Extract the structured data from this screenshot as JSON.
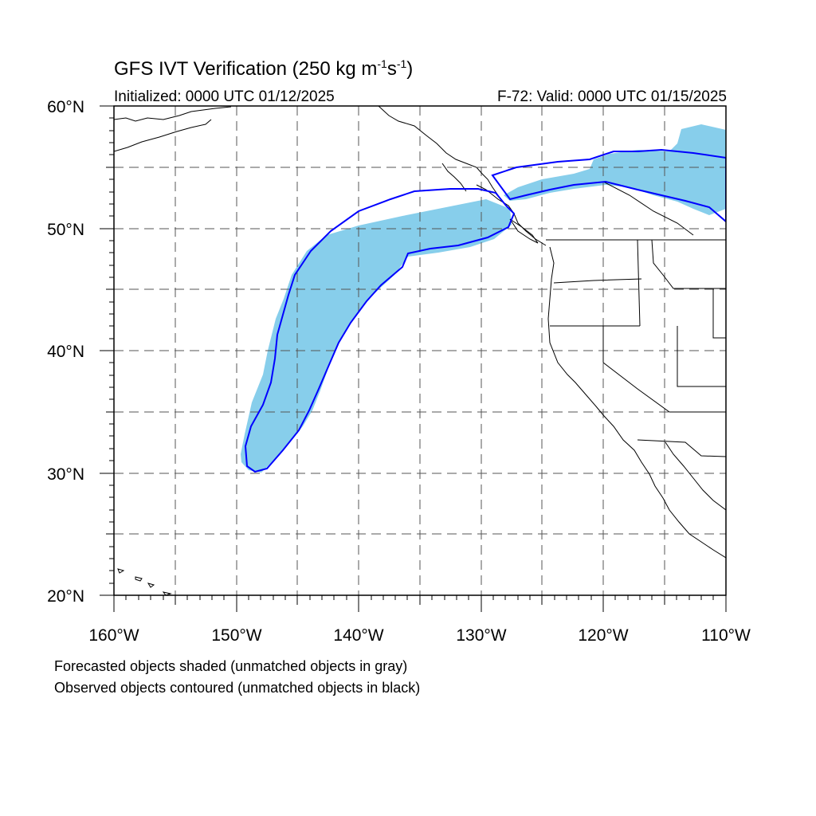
{
  "title": {
    "prefix": "GFS IVT Verification (250 kg m",
    "exp1": "-1",
    "middle": "s",
    "exp2": "-1",
    "suffix": ")"
  },
  "init_text": "Initialized: 0000 UTC 01/12/2025",
  "valid_text": "F-72: Valid: 0000 UTC 01/15/2025",
  "lat_labels": [
    "60°N",
    "50°N",
    "40°N",
    "30°N",
    "20°N"
  ],
  "lon_labels": [
    "160°W",
    "150°W",
    "140°W",
    "130°W",
    "120°W",
    "110°W"
  ],
  "map_extent": {
    "lon_min": -160,
    "lon_max": -110,
    "lat_min": 20,
    "lat_max": 60
  },
  "legend": {
    "forecast": "Forecasted objects shaded (unmatched objects in gray)",
    "observed": "Observed objects contoured (unmatched objects in black)"
  },
  "colors": {
    "forecast_fill": "#87ceeb",
    "observed_contour": "#0000ff",
    "coastline": "#000000",
    "grid": "#555555"
  }
}
